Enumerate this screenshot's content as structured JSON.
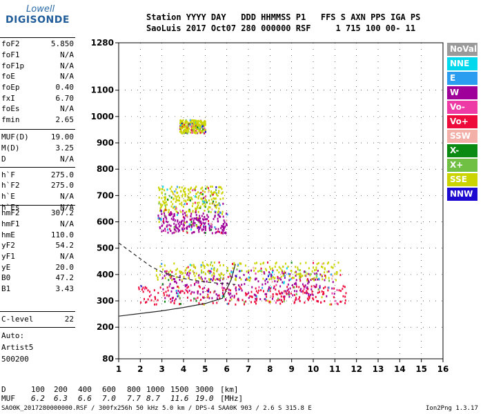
{
  "logo": {
    "top": "Lowell",
    "bottom": "DIGISONDE"
  },
  "header": {
    "line1": "Station YYYY DAY   DDD HHMMSS P1   FFS S AXN PPS IGA PS",
    "line2": "SaoLuis 2017 Oct07 280 000000 RSF     1 715 100 00- 11"
  },
  "params": [
    {
      "k": "foF2",
      "v": "5.850"
    },
    {
      "k": "foF1",
      "v": "N/A"
    },
    {
      "k": "foF1p",
      "v": "N/A"
    },
    {
      "k": "foE",
      "v": "N/A"
    },
    {
      "k": "foEp",
      "v": "0.40"
    },
    {
      "k": "fxI",
      "v": "6.70"
    },
    {
      "k": "foEs",
      "v": "N/A"
    },
    {
      "k": "fmin",
      "v": "2.65"
    },
    {
      "k": "MUF(D)",
      "v": "19.00"
    },
    {
      "k": "M(D)",
      "v": "3.25"
    },
    {
      "k": "D",
      "v": "N/A"
    },
    {
      "k": "h`F",
      "v": "275.0"
    },
    {
      "k": "h`F2",
      "v": "275.0"
    },
    {
      "k": "h`E",
      "v": "N/A"
    },
    {
      "k": "h`Es",
      "v": "N/A"
    },
    {
      "k": "hmF2",
      "v": "307.2"
    },
    {
      "k": "hmF1",
      "v": "N/A"
    },
    {
      "k": "hmE",
      "v": "110.0"
    },
    {
      "k": "yF2",
      "v": "54.2"
    },
    {
      "k": "yF1",
      "v": "N/A"
    },
    {
      "k": "yE",
      "v": "20.0"
    },
    {
      "k": "B0",
      "v": "47.2"
    },
    {
      "k": "B1",
      "v": "3.43"
    },
    {
      "k": "C-level",
      "v": "22"
    }
  ],
  "auto": {
    "line1": "Auto:",
    "line2": "Artist5",
    "line3": "500200"
  },
  "legend": [
    {
      "label": "NoVal",
      "color": "#9a9a9a"
    },
    {
      "label": "NNE",
      "color": "#00d8ee"
    },
    {
      "label": "E",
      "color": "#2a9df0"
    },
    {
      "label": "W",
      "color": "#a0009a"
    },
    {
      "label": "Vo-",
      "color": "#ee3aa5"
    },
    {
      "label": "Vo+",
      "color": "#ee0a3a"
    },
    {
      "label": "SSW",
      "color": "#f2b0a8"
    },
    {
      "label": "X-",
      "color": "#0a8a12"
    },
    {
      "label": "X+",
      "color": "#70c044"
    },
    {
      "label": "SSE",
      "color": "#ccd400"
    },
    {
      "label": "NNW",
      "color": "#1c0ad0"
    }
  ],
  "footer": {
    "d_label": "D",
    "d_values": [
      "100",
      "200",
      "400",
      "600",
      "800",
      "1000",
      "1500",
      "3000"
    ],
    "d_unit": "[km]",
    "muf_label": "MUF",
    "muf_values": [
      "6.2",
      "6.3",
      "6.6",
      "7.0",
      "7.7",
      "8.7",
      "11.6",
      "19.0"
    ],
    "muf_unit": "[MHz]",
    "info": "SAO0K_2017280000000.RSF / 300fx256h 50 kHz 5.0 km / DPS-4 SAA0K 903 / 2.6 S 315.8 E",
    "version": "Ion2Png 1.3.17"
  },
  "chart_data": {
    "type": "scatter",
    "xlabel": "",
    "ylabel": "",
    "xlim": [
      1,
      16
    ],
    "ylim": [
      80,
      1280
    ],
    "x_ticks": [
      "1",
      "2",
      "3",
      "4",
      "5",
      "6",
      "7",
      "8",
      "9",
      "10",
      "11",
      "12",
      "13",
      "14",
      "15",
      "16"
    ],
    "y_ticks": [
      "80",
      "200",
      "300",
      "400",
      "500",
      "600",
      "700",
      "800",
      "900",
      "1000",
      "1100",
      "1280"
    ],
    "grid": true,
    "clusters": [
      {
        "name": "F-trace low",
        "series": "Vo+",
        "x0": 1.9,
        "x1": 11.5,
        "y0": 290,
        "y1": 360
      },
      {
        "name": "F-trace W",
        "series": "W",
        "x0": 3.0,
        "x1": 11.0,
        "y0": 310,
        "y1": 420
      },
      {
        "name": "F2 echo band",
        "series": "SSE",
        "x0": 2.7,
        "x1": 11.3,
        "y0": 380,
        "y1": 450
      },
      {
        "name": "second hop",
        "series": "SSE",
        "x0": 2.8,
        "x1": 5.8,
        "y0": 640,
        "y1": 740
      },
      {
        "name": "second hop W",
        "series": "W",
        "x0": 2.8,
        "x1": 6.0,
        "y0": 560,
        "y1": 640
      },
      {
        "name": "third hop",
        "series": "SSE",
        "x0": 3.8,
        "x1": 5.0,
        "y0": 940,
        "y1": 990
      }
    ],
    "curves": [
      {
        "name": "model lower",
        "style": "solid",
        "points": [
          [
            1,
            242
          ],
          [
            2,
            252
          ],
          [
            3,
            262
          ],
          [
            4,
            275
          ],
          [
            5,
            290
          ],
          [
            5.8,
            310
          ],
          [
            6.2,
            380
          ],
          [
            6.4,
            440
          ]
        ]
      },
      {
        "name": "model upper",
        "style": "dashed",
        "points": [
          [
            1,
            520
          ],
          [
            1.5,
            490
          ],
          [
            2,
            460
          ],
          [
            2.5,
            430
          ],
          [
            3,
            410
          ],
          [
            3.5,
            395
          ],
          [
            4,
            385
          ],
          [
            4.5,
            378
          ],
          [
            5,
            372
          ],
          [
            5.5,
            368
          ],
          [
            6,
            365
          ],
          [
            6.4,
            362
          ]
        ]
      }
    ]
  }
}
